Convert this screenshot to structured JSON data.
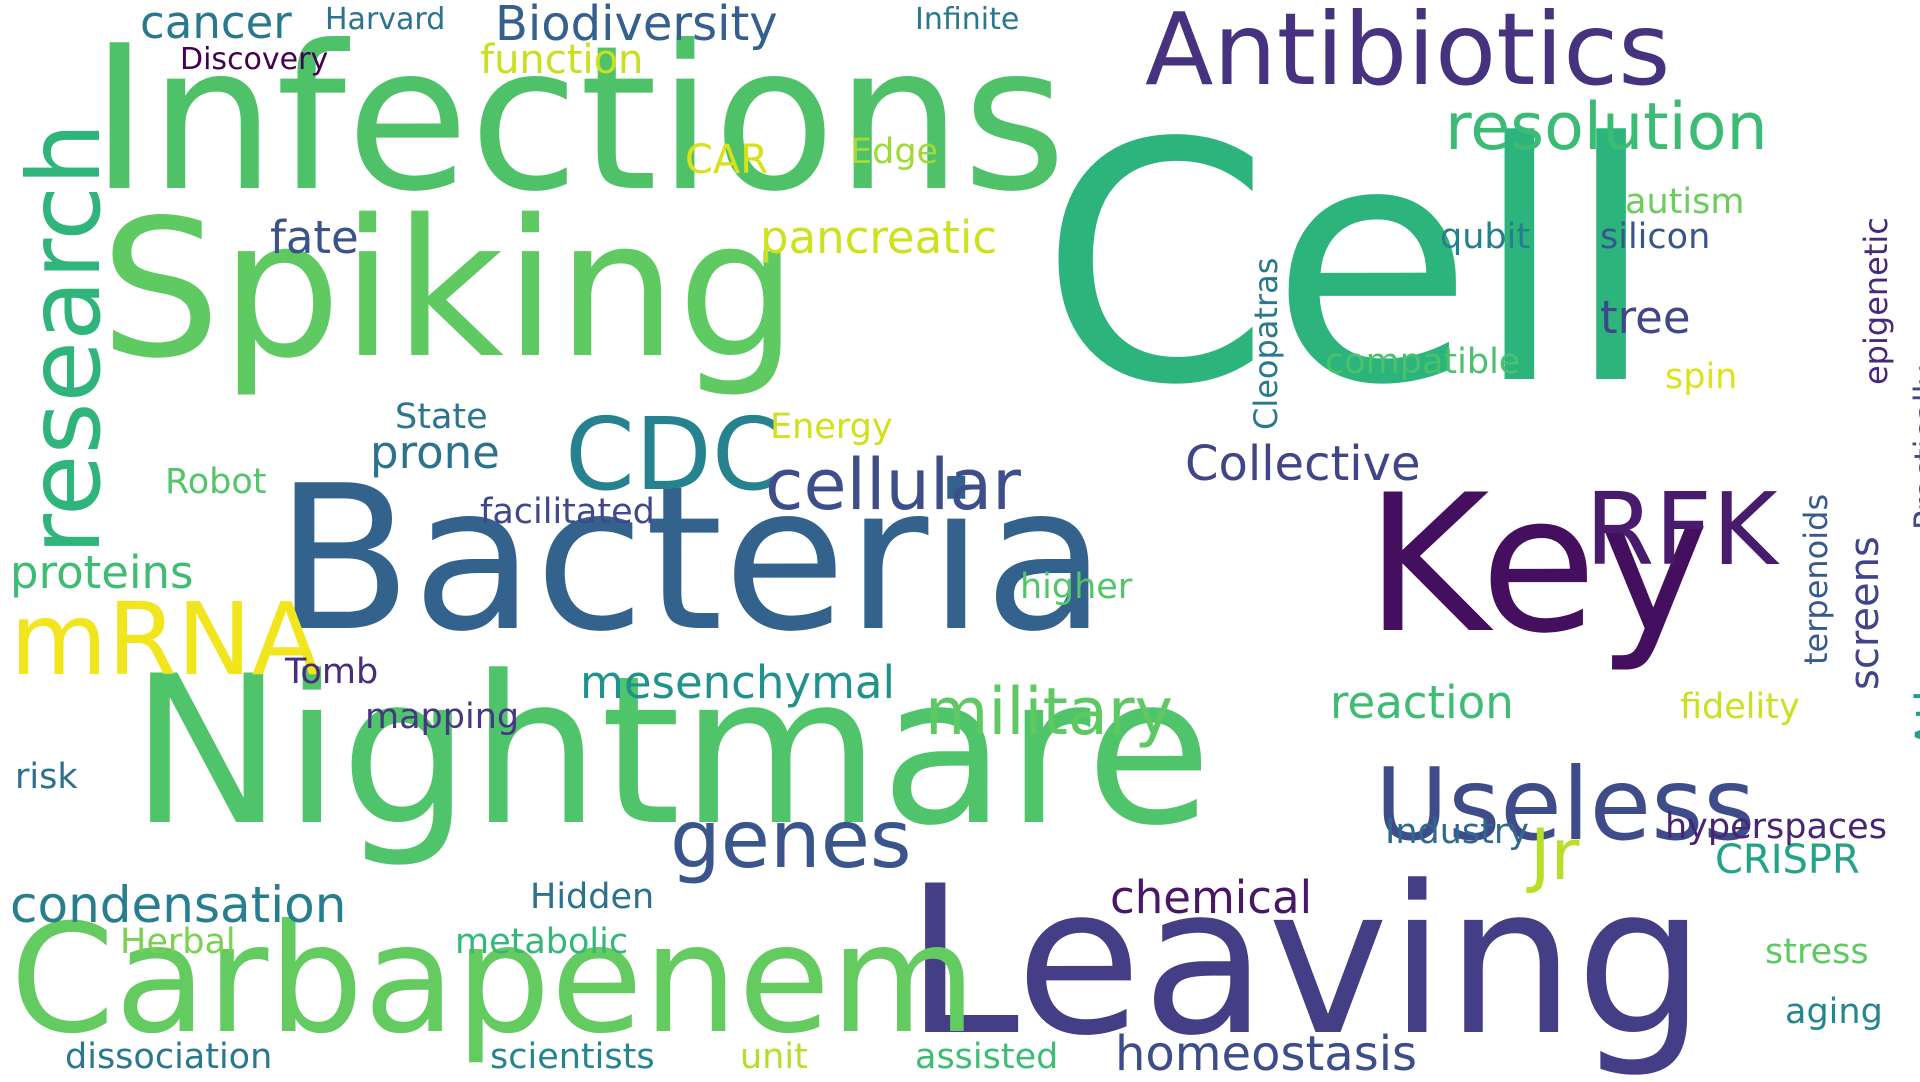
{
  "words": [
    {
      "text": "Infections",
      "color": "#4fc269"
    },
    {
      "text": "Cell",
      "color": "#2db47c"
    },
    {
      "text": "Spiking",
      "color": "#5fca61"
    },
    {
      "text": "Bacteria",
      "color": "#33628d"
    },
    {
      "text": "Nightmare",
      "color": "#50c46a"
    },
    {
      "text": "Leaving",
      "color": "#433e86"
    },
    {
      "text": "Key",
      "color": "#440f5e"
    },
    {
      "text": "Carbapenem",
      "color": "#63cb5f"
    },
    {
      "text": "Antibiotics",
      "color": "#46327e"
    },
    {
      "text": "research",
      "color": "#2fb47c"
    },
    {
      "text": "mRNA",
      "color": "#f1e51d"
    },
    {
      "text": "CDC",
      "color": "#26828e"
    },
    {
      "text": "RFK",
      "color": "#481b6d"
    },
    {
      "text": "Useless",
      "color": "#3e4c8a"
    },
    {
      "text": "cellular",
      "color": "#3d4e8a"
    },
    {
      "text": "military",
      "color": "#5ec962"
    },
    {
      "text": "resolution",
      "color": "#3cbb75"
    },
    {
      "text": "genes",
      "color": "#3a548c"
    },
    {
      "text": "Jr",
      "color": "#b8de29"
    },
    {
      "text": "Biodiversity",
      "color": "#355f8d"
    },
    {
      "text": "homeostasis",
      "color": "#3d4d8a"
    },
    {
      "text": "condensation",
      "color": "#287d8e"
    },
    {
      "text": "Collective",
      "color": "#404588"
    },
    {
      "text": "chemical",
      "color": "#481769"
    },
    {
      "text": "mesenchymal",
      "color": "#21918c"
    },
    {
      "text": "pancreatic",
      "color": "#cde11d"
    },
    {
      "text": "proteins",
      "color": "#3fbc73"
    },
    {
      "text": "prone",
      "color": "#2c728e"
    },
    {
      "text": "fate",
      "color": "#3b528b"
    },
    {
      "text": "cancer",
      "color": "#2a788e"
    },
    {
      "text": "function",
      "color": "#c8e020"
    },
    {
      "text": "tree",
      "color": "#404688"
    },
    {
      "text": "reaction",
      "color": "#3fbc73"
    },
    {
      "text": "Atlas",
      "color": "#1f9e89"
    },
    {
      "text": "screens",
      "color": "#414487"
    },
    {
      "text": "CRISPR",
      "color": "#20a386"
    },
    {
      "text": "CAR",
      "color": "#d8e219"
    },
    {
      "text": "Discovery",
      "color": "#440154"
    },
    {
      "text": "Harvard",
      "color": "#2c728e"
    },
    {
      "text": "Infinite",
      "color": "#2a788e"
    },
    {
      "text": "Edge",
      "color": "#a0da39"
    },
    {
      "text": "autism",
      "color": "#6ccd5a"
    },
    {
      "text": "silicon",
      "color": "#39568c"
    },
    {
      "text": "qubit",
      "color": "#277f8e"
    },
    {
      "text": "compatible",
      "color": "#4ac16d"
    },
    {
      "text": "spin",
      "color": "#dde318"
    },
    {
      "text": "epigenetic",
      "color": "#482878"
    },
    {
      "text": "Practically",
      "color": "#3e4989"
    },
    {
      "text": "Cleopatras",
      "color": "#2a788e"
    },
    {
      "text": "State",
      "color": "#2b758e"
    },
    {
      "text": "Energy",
      "color": "#d0e11c"
    },
    {
      "text": "Robot",
      "color": "#54c568"
    },
    {
      "text": "facilitated",
      "color": "#3f4889"
    },
    {
      "text": "higher",
      "color": "#52c569"
    },
    {
      "text": "terpenoids",
      "color": "#38598c"
    },
    {
      "text": "fidelity",
      "color": "#cae11f"
    },
    {
      "text": "Tomb",
      "color": "#472d7b"
    },
    {
      "text": "mapping",
      "color": "#453882"
    },
    {
      "text": "risk",
      "color": "#2d708e"
    },
    {
      "text": "Industry",
      "color": "#31688e"
    },
    {
      "text": "hyperspaces",
      "color": "#482475"
    },
    {
      "text": "Hidden",
      "color": "#2c728e"
    },
    {
      "text": "Herbal",
      "color": "#7ad151"
    },
    {
      "text": "metabolic",
      "color": "#35b779"
    },
    {
      "text": "stress",
      "color": "#5ec962"
    },
    {
      "text": "aging",
      "color": "#24868e"
    },
    {
      "text": "dissociation",
      "color": "#2a778e"
    },
    {
      "text": "scientists",
      "color": "#25848e"
    },
    {
      "text": "unit",
      "color": "#b5de2b"
    },
    {
      "text": "assisted",
      "color": "#3fbc73"
    }
  ]
}
